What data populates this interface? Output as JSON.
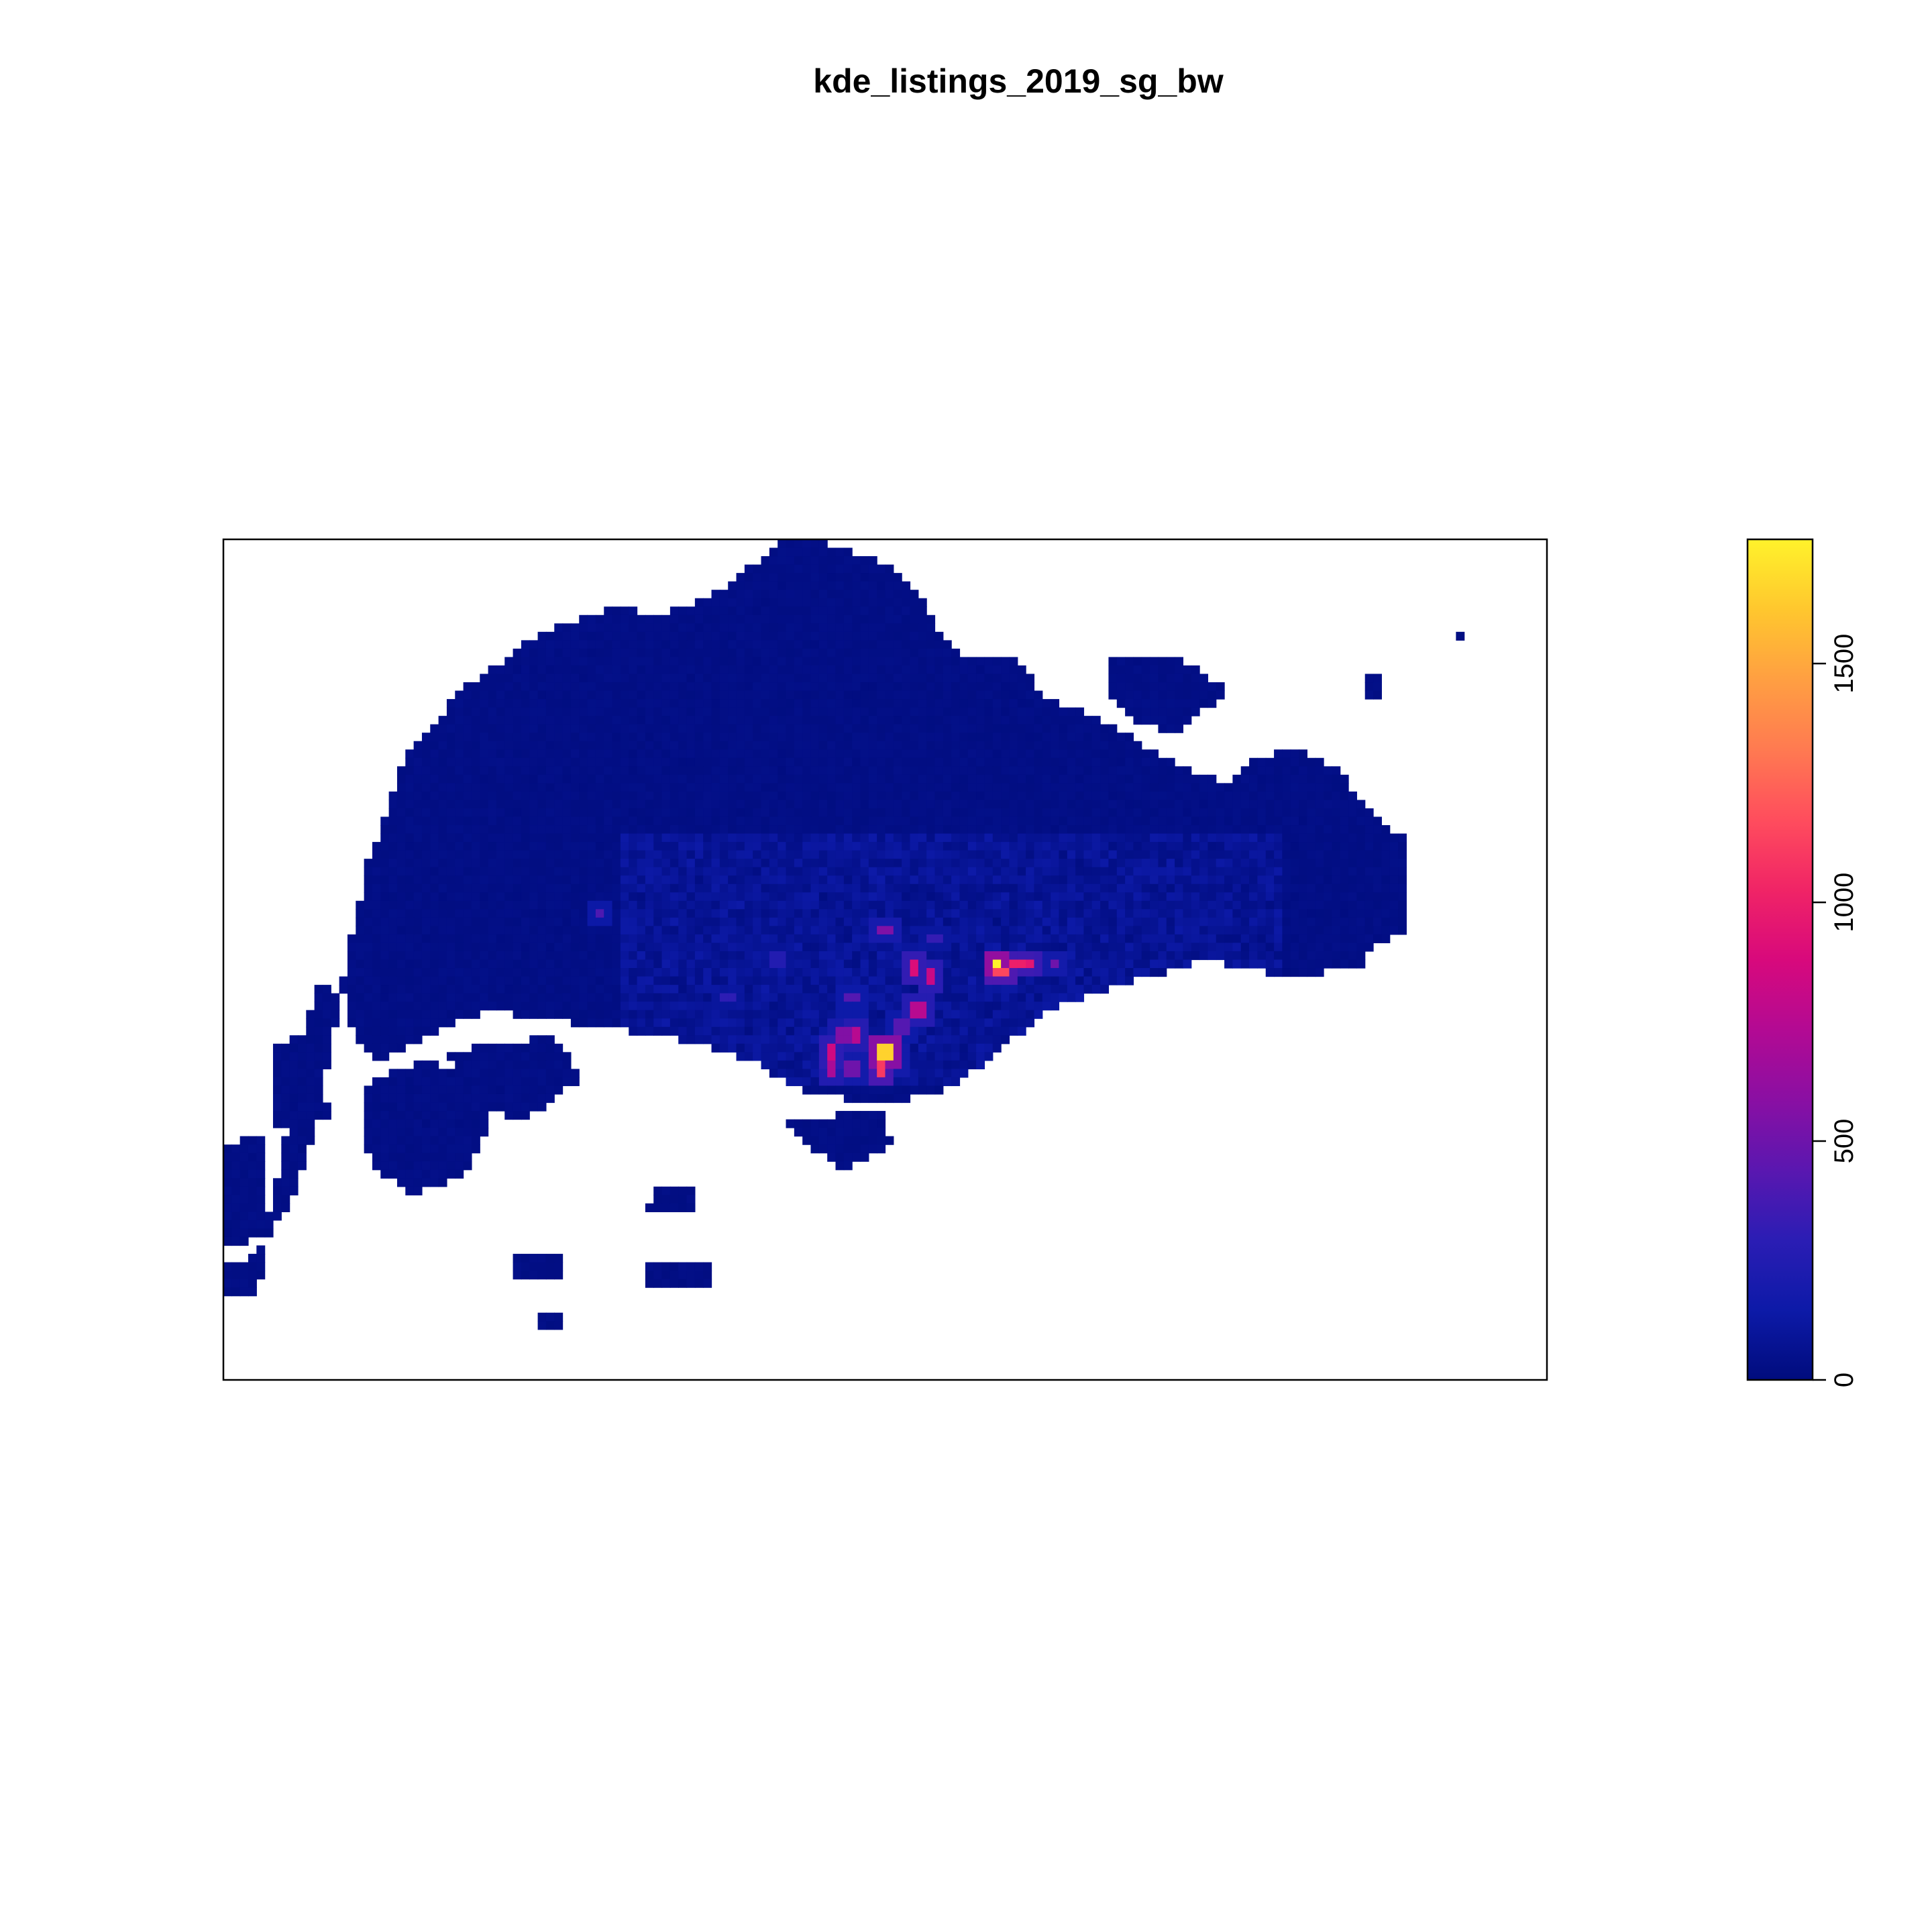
{
  "chart_data": {
    "type": "heatmap",
    "title": "kde_listings_2019_sg_bw",
    "xlabel": "",
    "ylabel": "",
    "axes_shown": false,
    "grid": false,
    "value_range": [
      0,
      1760
    ],
    "colorbar": {
      "placement": "right",
      "ticks": [
        "0",
        "500",
        "1000",
        "1500"
      ],
      "tick_values": [
        0,
        500,
        1000,
        1500
      ],
      "colors": [
        "#000c7d",
        "#0d1aa8",
        "#2b1db4",
        "#5a17b0",
        "#8a0fa3",
        "#b30a93",
        "#d8097c",
        "#f02466",
        "#ff4d5d",
        "#ff7a51",
        "#ff9f42",
        "#ffc72e",
        "#fff22b"
      ]
    },
    "background_color": "#000c7d",
    "hotspots": [
      {
        "cx": 0.5,
        "cy": 0.465,
        "value": 550
      },
      {
        "cx": 0.523,
        "cy": 0.508,
        "value": 900
      },
      {
        "cx": 0.535,
        "cy": 0.52,
        "value": 820
      },
      {
        "cx": 0.537,
        "cy": 0.474,
        "value": 320
      },
      {
        "cx": 0.525,
        "cy": 0.56,
        "value": 750
      },
      {
        "cx": 0.514,
        "cy": 0.578,
        "value": 420
      },
      {
        "cx": 0.585,
        "cy": 0.506,
        "value": 1760
      },
      {
        "cx": 0.6,
        "cy": 0.505,
        "value": 1000
      },
      {
        "cx": 0.588,
        "cy": 0.513,
        "value": 1150
      },
      {
        "cx": 0.608,
        "cy": 0.504,
        "value": 950
      },
      {
        "cx": 0.627,
        "cy": 0.505,
        "value": 500
      },
      {
        "cx": 0.498,
        "cy": 0.616,
        "value": 900
      },
      {
        "cx": 0.478,
        "cy": 0.59,
        "value": 750
      },
      {
        "cx": 0.47,
        "cy": 0.59,
        "value": 560
      },
      {
        "cx": 0.475,
        "cy": 0.547,
        "value": 420
      },
      {
        "cx": 0.499,
        "cy": 0.611,
        "value": 1650
      },
      {
        "cx": 0.504,
        "cy": 0.604,
        "value": 700
      },
      {
        "cx": 0.498,
        "cy": 0.63,
        "value": 1100
      },
      {
        "cx": 0.46,
        "cy": 0.608,
        "value": 850
      },
      {
        "cx": 0.46,
        "cy": 0.63,
        "value": 700
      },
      {
        "cx": 0.475,
        "cy": 0.628,
        "value": 500
      },
      {
        "cx": 0.51,
        "cy": 0.62,
        "value": 500
      },
      {
        "cx": 0.38,
        "cy": 0.546,
        "value": 300
      },
      {
        "cx": 0.285,
        "cy": 0.443,
        "value": 400
      },
      {
        "cx": 0.37,
        "cy": 0.626,
        "value": 380
      },
      {
        "cx": 0.42,
        "cy": 0.5,
        "value": 250
      }
    ]
  }
}
